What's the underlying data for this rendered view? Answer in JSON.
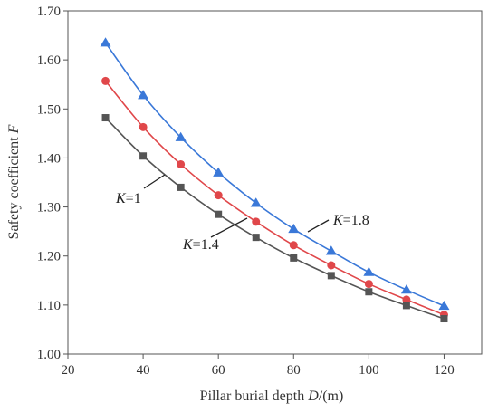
{
  "chart_data": {
    "type": "line",
    "xlabel": "Pillar burial depth D/(m)",
    "ylabel": "Safety coefficient F",
    "xlim": [
      20,
      130
    ],
    "ylim": [
      1.0,
      1.7
    ],
    "x_ticks": [
      "20",
      "40",
      "60",
      "80",
      "100",
      "120"
    ],
    "y_ticks": [
      "1.00",
      "1.10",
      "1.20",
      "1.30",
      "1.40",
      "1.50",
      "1.60",
      "1.70"
    ],
    "grid": false,
    "x": [
      30,
      40,
      50,
      60,
      70,
      80,
      90,
      100,
      110,
      120
    ],
    "series": [
      {
        "name": "K=1.8",
        "color": "#3a78d8",
        "marker": "triangle",
        "values": [
          1.635,
          1.528,
          1.442,
          1.37,
          1.308,
          1.255,
          1.21,
          1.167,
          1.131,
          1.098
        ]
      },
      {
        "name": "K=1.4",
        "color": "#e0474a",
        "marker": "circle",
        "values": [
          1.557,
          1.463,
          1.387,
          1.324,
          1.27,
          1.222,
          1.181,
          1.143,
          1.111,
          1.08
        ]
      },
      {
        "name": "K=1",
        "color": "#555555",
        "marker": "square",
        "values": [
          1.482,
          1.404,
          1.34,
          1.285,
          1.238,
          1.196,
          1.16,
          1.127,
          1.099,
          1.072
        ]
      }
    ],
    "annotations": [
      {
        "series": "K=1",
        "prefix": "K",
        "suffix": "=1"
      },
      {
        "series": "K=1.4",
        "prefix": "K",
        "suffix": "=1.4"
      },
      {
        "series": "K=1.8",
        "prefix": "K",
        "suffix": "=1.8"
      }
    ],
    "axis_title_parts": {
      "x": {
        "text": "Pillar burial depth ",
        "italic": "D",
        "rest": "/(m)"
      },
      "y": {
        "text": "Safety coefficient ",
        "italic": "F"
      }
    }
  }
}
